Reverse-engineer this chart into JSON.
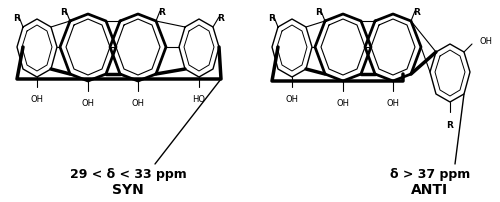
{
  "background_color": "#ffffff",
  "fig_width": 5.0,
  "fig_height": 2.03,
  "dpi": 100,
  "syn_label": "29 < δ < 33 ppm",
  "syn_sublabel": "SYN",
  "anti_label": "δ > 37 ppm",
  "anti_sublabel": "ANTI",
  "label_fontsize": 9,
  "sublabel_fontsize": 10
}
